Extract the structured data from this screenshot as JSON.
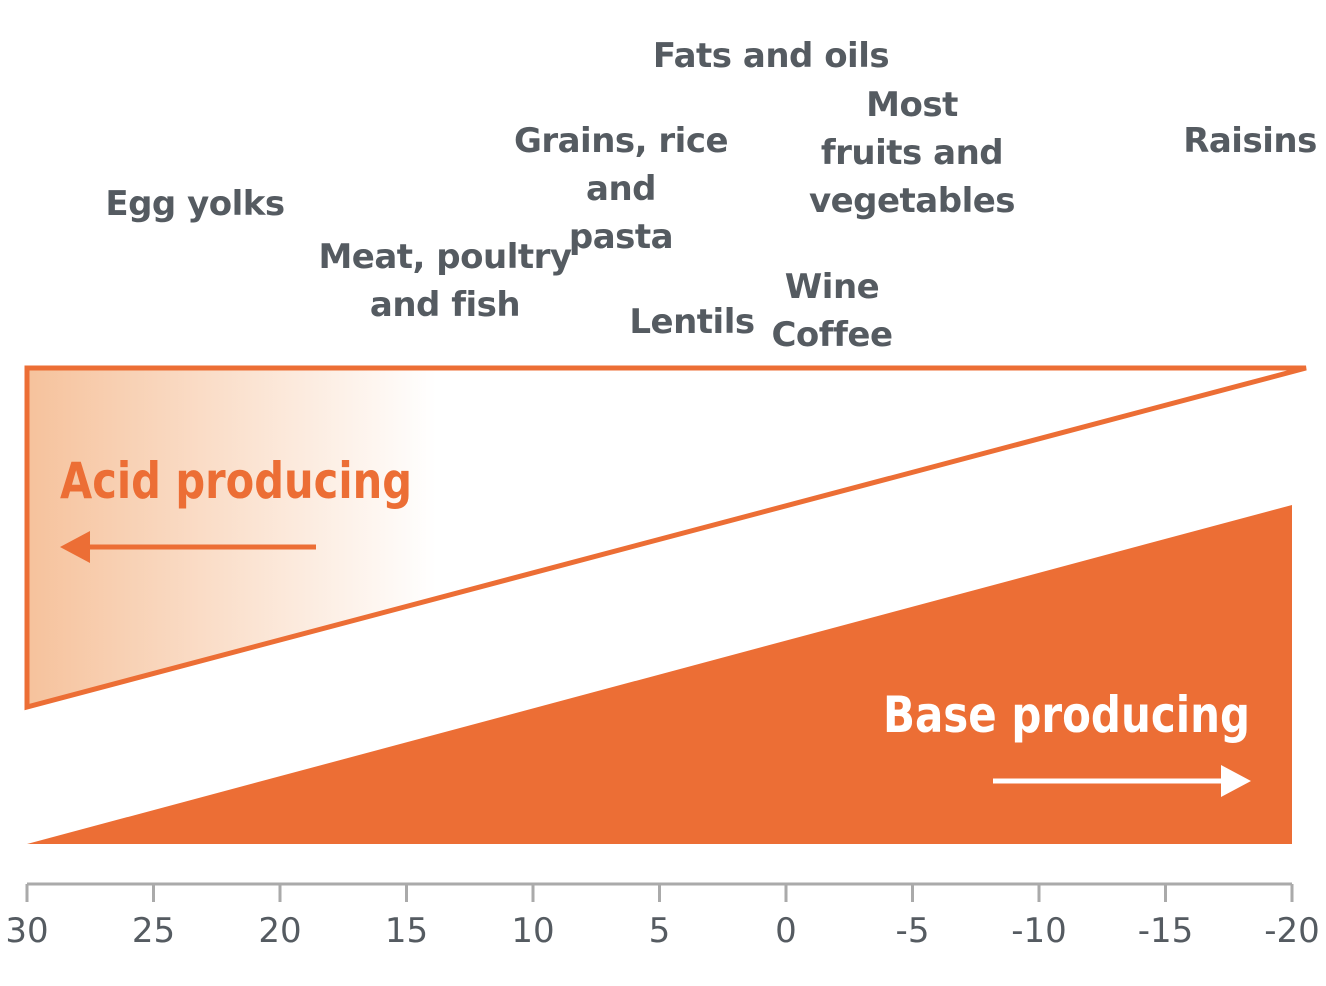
{
  "foods": [
    {
      "id": "egg-yolks",
      "label": "Egg yolks"
    },
    {
      "id": "meat-poultry-fish",
      "label": "Meat, poultry\nand fish"
    },
    {
      "id": "grains-rice-pasta",
      "label": "Grains, rice and\npasta"
    },
    {
      "id": "lentils",
      "label": "Lentils"
    },
    {
      "id": "fats-oils",
      "label": "Fats and oils"
    },
    {
      "id": "wine-coffee",
      "label": "Wine\nCoffee"
    },
    {
      "id": "fruits-vegetables",
      "label": "Most\nfruits and\nvegetables"
    },
    {
      "id": "raisins",
      "label": "Raisins"
    }
  ],
  "acid_label": "Acid producing",
  "base_label": "Base producing",
  "axis": {
    "ticks": [
      "30",
      "25",
      "20",
      "15",
      "10",
      "5",
      "0",
      "-5",
      "-10",
      "-15",
      "-20"
    ],
    "values": [
      30,
      25,
      20,
      15,
      10,
      5,
      0,
      -5,
      -10,
      -15,
      -20
    ]
  },
  "colors": {
    "accent": "#ec6e35",
    "acid_fill": "#f6c29c",
    "text": "#555b61",
    "axis": "#aaaaaa"
  }
}
